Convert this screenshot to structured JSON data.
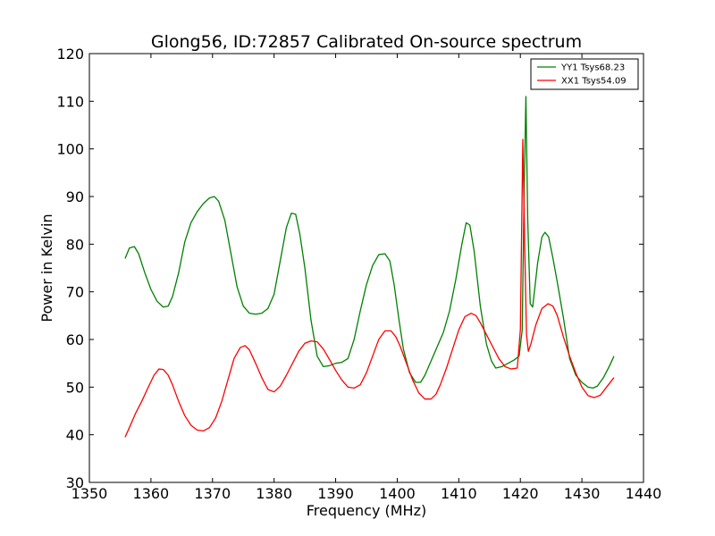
{
  "chart_data": {
    "type": "line",
    "title": "Glong56, ID:72857 Calibrated On-source spectrum",
    "xlabel": "Frequency (MHz)",
    "ylabel": "Power in Kelvin",
    "xlim": [
      1350,
      1440
    ],
    "ylim": [
      30,
      120
    ],
    "xticks": [
      "1350",
      "1360",
      "1370",
      "1380",
      "1390",
      "1400",
      "1410",
      "1420",
      "1430",
      "1440"
    ],
    "yticks": [
      "30",
      "40",
      "50",
      "60",
      "70",
      "80",
      "90",
      "100",
      "110",
      "120"
    ],
    "grid": false,
    "legend_position": "top-right",
    "series": [
      {
        "name": "YY1 Tsys68.23",
        "color": "#008000",
        "x": [
          1355.8,
          1356.5,
          1357.3,
          1358.0,
          1359.0,
          1360.0,
          1361.0,
          1362.0,
          1362.8,
          1363.5,
          1364.5,
          1365.5,
          1366.5,
          1367.5,
          1368.5,
          1369.5,
          1370.3,
          1371.0,
          1372.0,
          1373.0,
          1374.0,
          1375.0,
          1376.0,
          1377.0,
          1378.0,
          1379.0,
          1380.0,
          1381.0,
          1382.0,
          1382.8,
          1383.5,
          1384.2,
          1385.0,
          1386.0,
          1387.0,
          1388.0,
          1389.0,
          1390.0,
          1391.0,
          1392.0,
          1393.0,
          1394.0,
          1395.0,
          1396.0,
          1397.0,
          1398.0,
          1398.8,
          1399.5,
          1400.3,
          1401.0,
          1402.0,
          1403.0,
          1403.8,
          1404.5,
          1405.5,
          1406.5,
          1407.5,
          1408.5,
          1409.5,
          1410.5,
          1411.2,
          1411.8,
          1412.5,
          1413.5,
          1414.5,
          1415.3,
          1416.0,
          1417.0,
          1418.0,
          1419.0,
          1419.8,
          1420.3,
          1420.6,
          1420.9,
          1421.2,
          1421.6,
          1422.0,
          1422.8,
          1423.5,
          1424.0,
          1424.6,
          1425.3,
          1426.0,
          1427.0,
          1428.0,
          1429.0,
          1430.0,
          1431.0,
          1431.8,
          1432.5,
          1433.5,
          1434.5,
          1435.2
        ],
        "values": [
          77,
          79.2,
          79.5,
          78,
          74,
          70.5,
          68,
          66.8,
          67,
          69,
          74,
          80.5,
          84.5,
          86.8,
          88.5,
          89.7,
          90,
          89,
          85,
          78,
          71,
          67,
          65.5,
          65.3,
          65.5,
          66.5,
          69.5,
          76.5,
          83.5,
          86.5,
          86.3,
          82,
          75,
          64,
          56.5,
          54.3,
          54.5,
          55,
          55.2,
          56,
          60,
          66,
          71.5,
          75.5,
          77.8,
          78,
          76.5,
          71.5,
          64,
          58,
          53,
          51,
          51,
          52.5,
          55.5,
          58.5,
          61.5,
          66,
          72.5,
          80,
          84.5,
          84,
          78.5,
          67,
          59,
          55.5,
          54,
          54.3,
          55,
          55.7,
          56.5,
          62,
          90,
          111,
          85,
          67.5,
          66.8,
          76,
          81.5,
          82.5,
          81.5,
          77,
          72,
          64.5,
          56,
          52.5,
          51,
          50,
          49.8,
          50.2,
          52,
          54.5,
          56.5
        ]
      },
      {
        "name": "XX1 Tsys54.09",
        "color": "#ff0000",
        "x": [
          1355.8,
          1356.5,
          1357.5,
          1358.5,
          1359.5,
          1360.5,
          1361.3,
          1362.0,
          1362.8,
          1363.5,
          1364.5,
          1365.5,
          1366.5,
          1367.5,
          1368.5,
          1369.5,
          1370.5,
          1371.5,
          1372.5,
          1373.5,
          1374.5,
          1375.3,
          1376.0,
          1377.0,
          1378.0,
          1379.0,
          1380.0,
          1381.0,
          1382.0,
          1383.0,
          1384.0,
          1385.0,
          1386.0,
          1387.0,
          1388.0,
          1389.0,
          1390.0,
          1391.0,
          1392.0,
          1393.0,
          1394.0,
          1395.0,
          1396.0,
          1397.0,
          1398.0,
          1399.0,
          1399.8,
          1400.5,
          1401.5,
          1402.5,
          1403.5,
          1404.5,
          1405.5,
          1406.3,
          1407.0,
          1408.0,
          1409.0,
          1410.0,
          1411.0,
          1412.0,
          1412.8,
          1413.5,
          1414.5,
          1415.5,
          1416.5,
          1417.5,
          1418.5,
          1419.5,
          1420.0,
          1420.4,
          1420.7,
          1421.0,
          1421.3,
          1421.7,
          1422.5,
          1423.5,
          1424.5,
          1425.3,
          1426.0,
          1427.0,
          1428.0,
          1429.0,
          1430.0,
          1431.0,
          1432.0,
          1433.0,
          1434.0,
          1435.2
        ],
        "values": [
          39.5,
          41.5,
          44.5,
          47,
          49.8,
          52.5,
          53.8,
          53.7,
          52.5,
          50.5,
          47,
          44,
          42,
          41,
          40.8,
          41.5,
          43.5,
          47,
          51.5,
          56,
          58.3,
          58.7,
          57.8,
          55,
          52,
          49.5,
          49,
          50.2,
          52.5,
          55,
          57.5,
          59.2,
          59.7,
          59.5,
          58,
          55.8,
          53.5,
          51.5,
          50,
          49.8,
          50.5,
          53,
          56.5,
          60,
          61.8,
          61.8,
          60.5,
          58.5,
          55,
          51.5,
          48.8,
          47.5,
          47.5,
          48.5,
          50.5,
          54,
          58,
          62,
          64.8,
          65.5,
          65,
          63.5,
          61,
          58.5,
          56,
          54.3,
          53.8,
          54,
          62,
          102,
          80,
          61,
          57.5,
          59,
          63,
          66.5,
          67.5,
          67,
          65,
          60.5,
          56.5,
          53,
          50,
          48.2,
          47.8,
          48.3,
          50,
          52
        ]
      }
    ]
  }
}
